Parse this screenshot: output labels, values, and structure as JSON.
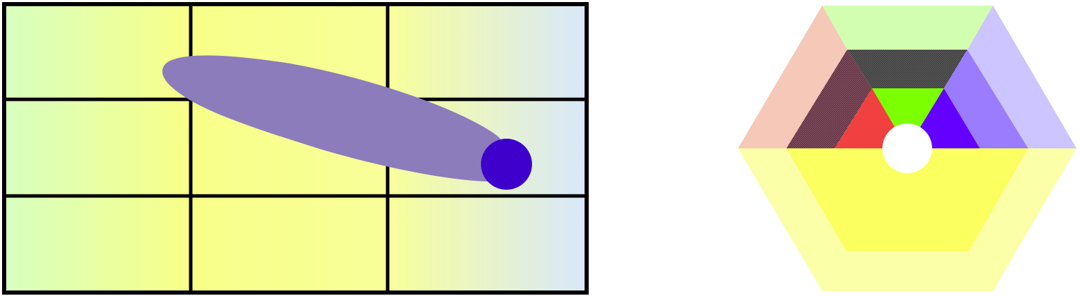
{
  "colors": {
    "background": "#ffffff",
    "grid_line": "#000000",
    "grid_gradient": [
      "#d8ffc0",
      "#f8ff88",
      "#f8ff98",
      "#d8e8fa"
    ],
    "ellipse_fill": "#8c7cbb",
    "dot_fill": "#4000cc",
    "hex_outer_top": "#d2ffaf",
    "hex_outer_upper_left": "#f5c8b8",
    "hex_outer_upper_right": "#cdc5ff",
    "hex_outer_bottom": "#fbffa8",
    "hex_mid_top": "#3a3a3a",
    "hex_mid_upper_left": "#5a2a3a",
    "hex_mid_upper_right": "#9a7cff",
    "hex_mid_bottom": "#fbff60",
    "hex_inner_top": "#7cff00",
    "hex_inner_upper_left": "#f04040",
    "hex_inner_upper_right": "#6400ff",
    "hex_center": "#ffffff"
  },
  "grid": {
    "rows": 3,
    "columns": 3
  },
  "icons": {
    "grid_diagram": "grid-with-ellipse-icon",
    "hexagon_diagram": "segmented-hexagon-icon"
  }
}
